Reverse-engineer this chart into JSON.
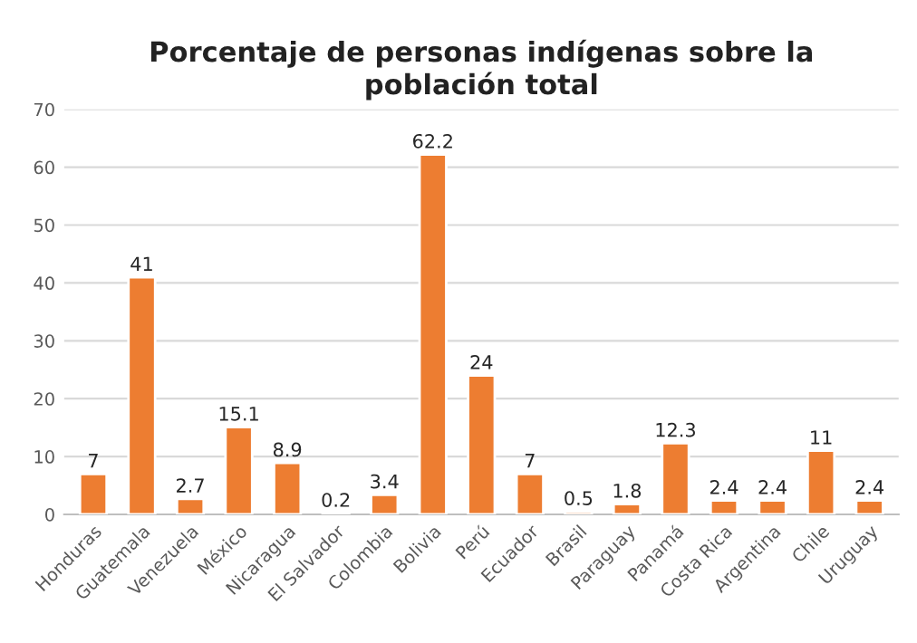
{
  "chart_data": {
    "type": "bar",
    "title": "Porcentaje de personas indígenas sobre la\npoblación total",
    "categories": [
      "Honduras",
      "Guatemala",
      "Venezuela",
      "México",
      "Nicaragua",
      "El Salvador",
      "Colombia",
      "Bolivia",
      "Perú",
      "Ecuador",
      "Brasil",
      "Paraguay",
      "Panamá",
      "Costa Rica",
      "Argentina",
      "Chile",
      "Uruguay"
    ],
    "values": [
      7,
      41,
      2.7,
      15.1,
      8.9,
      0.2,
      3.4,
      62.2,
      24,
      7,
      0.5,
      1.8,
      12.3,
      2.4,
      2.4,
      11,
      2.4
    ],
    "color": "#ed7d31",
    "ylim": [
      0,
      70
    ],
    "yticks": [
      0,
      10,
      20,
      30,
      40,
      50,
      60,
      70
    ],
    "grid": "y",
    "data_labels": true
  }
}
